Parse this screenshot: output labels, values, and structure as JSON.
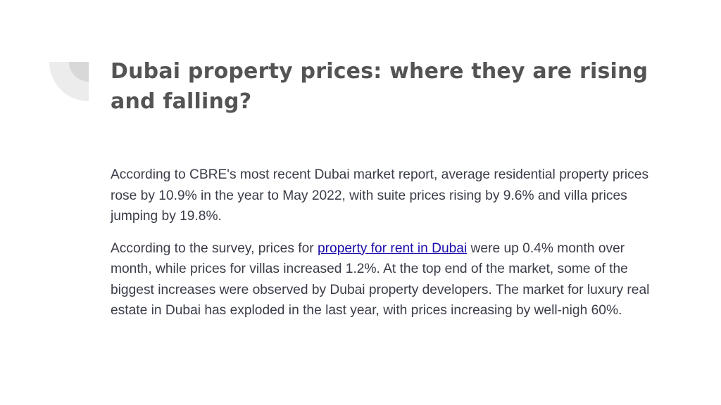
{
  "slide": {
    "title": "Dubai property prices: where they are rising and falling?",
    "paragraph1": "According to CBRE's most recent Dubai market report, average residential property prices rose by 10.9% in the year to May 2022, with suite prices rising by 9.6% and villa prices jumping by 19.8%.",
    "paragraph2": {
      "before_link": " According to the survey, prices for ",
      "link_text": "property for rent in Dubai",
      "after_link": " were up 0.4% month over month, while prices for villas increased 1.2%. At the top end of the market, some of the biggest increases were observed by Dubai property developers. The market for luxury real estate in Dubai has exploded in the last year, with prices increasing by well-nigh 60%."
    }
  },
  "colors": {
    "title": "#545454",
    "body": "#3a3d48",
    "link": "#1a0dab",
    "decoration_outer": "#ececec",
    "decoration_inner": "#d8d8d8"
  }
}
